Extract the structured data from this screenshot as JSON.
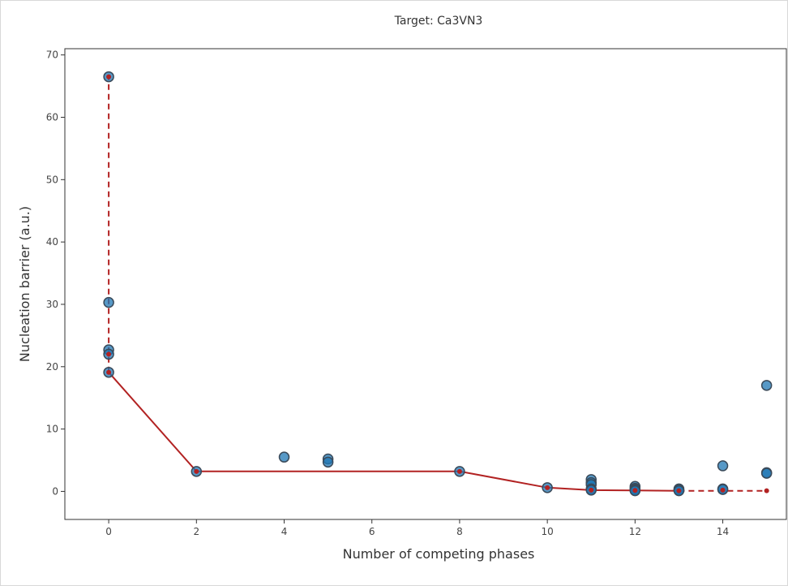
{
  "chart_data": {
    "type": "scatter",
    "title": "Target: Ca3VN3",
    "xlabel": "Number of competing phases",
    "ylabel": "Nucleation barrier (a.u.)",
    "xlim": [
      -1,
      15.45
    ],
    "ylim": [
      -4.5,
      71
    ],
    "xticks": [
      0,
      2,
      4,
      6,
      8,
      10,
      12,
      14
    ],
    "yticks": [
      0,
      10,
      20,
      30,
      40,
      50,
      60,
      70
    ],
    "grid": false,
    "colors": {
      "points": "#1f77b4",
      "point_edge": "#3a4a5a",
      "frontier": "#b22222"
    },
    "points": [
      [
        0,
        66.5
      ],
      [
        0,
        30.3
      ],
      [
        0,
        22.7
      ],
      [
        0,
        22.0
      ],
      [
        0,
        19.1
      ],
      [
        2,
        3.2
      ],
      [
        4,
        5.5
      ],
      [
        5,
        5.2
      ],
      [
        5,
        4.7
      ],
      [
        8,
        3.2
      ],
      [
        10,
        0.6
      ],
      [
        11,
        1.9
      ],
      [
        11,
        1.4
      ],
      [
        11,
        1.1
      ],
      [
        11,
        0.4
      ],
      [
        11,
        0.2
      ],
      [
        12,
        0.8
      ],
      [
        12,
        0.5
      ],
      [
        12,
        0.3
      ],
      [
        12,
        0.2
      ],
      [
        12,
        0.1
      ],
      [
        13,
        0.4
      ],
      [
        13,
        0.2
      ],
      [
        13,
        0.1
      ],
      [
        14,
        4.1
      ],
      [
        14,
        0.4
      ],
      [
        14,
        0.3
      ],
      [
        15,
        17.0
      ],
      [
        15,
        3.0
      ],
      [
        15,
        2.9
      ]
    ],
    "frontier_solid": [
      [
        0,
        19.1
      ],
      [
        2,
        3.2
      ],
      [
        8,
        3.2
      ],
      [
        10,
        0.6
      ],
      [
        11,
        0.2
      ],
      [
        12,
        0.15
      ],
      [
        13,
        0.1
      ]
    ],
    "frontier_dashed": [
      [
        13,
        0.1
      ],
      [
        15,
        0.1
      ]
    ],
    "vertical_dashed": [
      [
        0,
        19.1
      ],
      [
        0,
        66.5
      ]
    ],
    "frontier_markers": [
      [
        0,
        66.5
      ],
      [
        0,
        22.0
      ],
      [
        0,
        19.1
      ],
      [
        2,
        3.2
      ],
      [
        8,
        3.2
      ],
      [
        10,
        0.6
      ],
      [
        11,
        0.2
      ],
      [
        12,
        0.15
      ],
      [
        13,
        0.1
      ],
      [
        14,
        0.2
      ],
      [
        15,
        0.1
      ]
    ]
  }
}
